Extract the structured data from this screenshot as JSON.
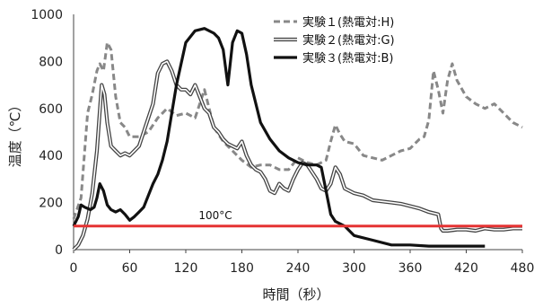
{
  "chart_data": {
    "type": "line",
    "xlabel": "時間（秒）",
    "ylabel": "温度（℃）",
    "xlim": [
      0,
      480
    ],
    "ylim": [
      0,
      1000
    ],
    "xticks": [
      0,
      60,
      120,
      180,
      240,
      300,
      360,
      420,
      480
    ],
    "yticks": [
      0,
      200,
      400,
      600,
      800,
      1000
    ],
    "grid": false,
    "legend_position": "top-right",
    "series": [
      {
        "name": "実験１(熱電対:H)",
        "color": "#888888",
        "style": "dashed",
        "x": [
          0,
          8,
          15,
          20,
          25,
          28,
          32,
          36,
          40,
          45,
          50,
          55,
          60,
          70,
          80,
          90,
          100,
          110,
          120,
          130,
          140,
          150,
          160,
          170,
          180,
          190,
          200,
          210,
          220,
          230,
          240,
          250,
          260,
          270,
          275,
          280,
          285,
          290,
          300,
          310,
          320,
          330,
          340,
          350,
          360,
          370,
          375,
          380,
          385,
          390,
          395,
          400,
          405,
          410,
          420,
          430,
          440,
          450,
          460,
          470,
          480
        ],
        "values": [
          130,
          220,
          580,
          660,
          760,
          790,
          760,
          880,
          850,
          650,
          540,
          520,
          480,
          480,
          500,
          560,
          600,
          570,
          580,
          560,
          680,
          520,
          460,
          420,
          380,
          350,
          360,
          360,
          340,
          340,
          390,
          370,
          360,
          380,
          460,
          530,
          490,
          460,
          450,
          400,
          390,
          380,
          400,
          420,
          430,
          470,
          480,
          550,
          760,
          680,
          580,
          720,
          790,
          720,
          650,
          620,
          600,
          620,
          580,
          540,
          520
        ]
      },
      {
        "name": "実験２(熱電対:G)",
        "color": "#444444",
        "style": "double",
        "x": [
          0,
          5,
          10,
          15,
          20,
          25,
          30,
          33,
          36,
          40,
          45,
          50,
          55,
          60,
          65,
          70,
          75,
          80,
          85,
          90,
          95,
          100,
          105,
          110,
          115,
          120,
          125,
          130,
          135,
          140,
          145,
          150,
          155,
          160,
          165,
          170,
          175,
          180,
          185,
          190,
          195,
          200,
          205,
          210,
          215,
          220,
          225,
          230,
          235,
          240,
          245,
          250,
          255,
          260,
          265,
          270,
          275,
          280,
          285,
          290,
          300,
          310,
          320,
          330,
          340,
          350,
          360,
          370,
          380,
          390,
          393,
          395,
          400,
          410,
          420,
          430,
          440,
          450,
          460,
          470,
          480
        ],
        "values": [
          0,
          20,
          60,
          130,
          240,
          420,
          700,
          660,
          540,
          440,
          420,
          400,
          410,
          400,
          420,
          440,
          500,
          560,
          620,
          750,
          790,
          800,
          760,
          700,
          680,
          680,
          660,
          700,
          650,
          600,
          580,
          520,
          500,
          470,
          450,
          440,
          430,
          460,
          400,
          360,
          340,
          330,
          300,
          250,
          240,
          280,
          260,
          250,
          300,
          340,
          370,
          360,
          330,
          300,
          260,
          250,
          280,
          350,
          320,
          260,
          240,
          230,
          210,
          205,
          200,
          195,
          185,
          175,
          160,
          150,
          90,
          80,
          80,
          85,
          85,
          80,
          90,
          85,
          85,
          90,
          90
        ]
      },
      {
        "name": "実験３(熱電対:B)",
        "color": "#111111",
        "style": "solid",
        "x": [
          0,
          5,
          8,
          12,
          18,
          22,
          25,
          28,
          32,
          36,
          40,
          45,
          50,
          55,
          60,
          65,
          70,
          75,
          80,
          85,
          90,
          95,
          100,
          110,
          120,
          130,
          140,
          150,
          155,
          160,
          165,
          170,
          175,
          180,
          185,
          190,
          200,
          210,
          220,
          230,
          240,
          250,
          260,
          265,
          270,
          275,
          280,
          290,
          300,
          320,
          340,
          360,
          380,
          400,
          420,
          440
        ],
        "values": [
          100,
          140,
          190,
          180,
          170,
          180,
          220,
          280,
          250,
          190,
          170,
          160,
          170,
          150,
          125,
          140,
          160,
          180,
          230,
          280,
          320,
          380,
          460,
          700,
          880,
          930,
          940,
          920,
          900,
          850,
          700,
          880,
          930,
          920,
          830,
          700,
          540,
          470,
          420,
          390,
          370,
          360,
          360,
          350,
          250,
          150,
          120,
          100,
          60,
          40,
          20,
          20,
          15,
          15,
          15,
          15
        ]
      }
    ],
    "reference_line": {
      "y": 100,
      "label": "100°C",
      "color": "#e53333"
    }
  }
}
